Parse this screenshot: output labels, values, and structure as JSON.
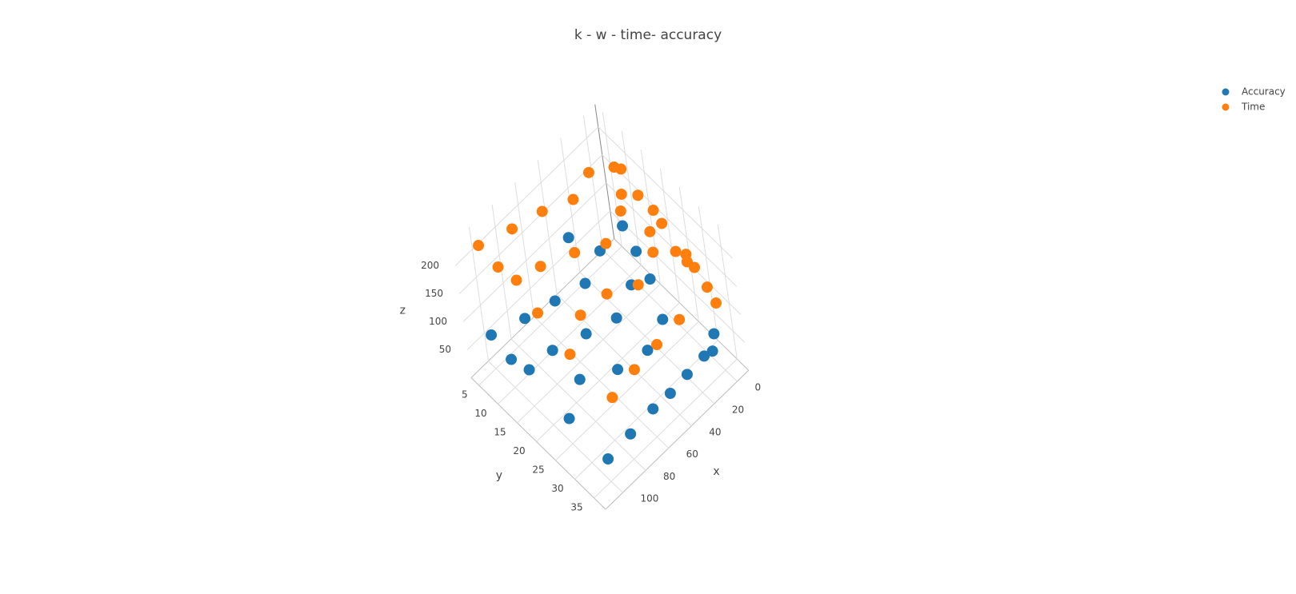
{
  "chart_data": {
    "type": "scatter3d",
    "title": "k - w - time- accuracy",
    "x_label": "x",
    "y_label": "y",
    "z_label": "z",
    "xlim": [
      -10,
      115
    ],
    "ylim": [
      3,
      38
    ],
    "zlim": [
      0,
      240
    ],
    "xticks": [
      0,
      20,
      40,
      60,
      80,
      100
    ],
    "yticks": [
      5,
      10,
      15,
      20,
      25,
      30,
      35
    ],
    "zticks": [
      50,
      100,
      150,
      200
    ],
    "grid": true,
    "legend_position": "top-right",
    "series": [
      {
        "name": "Accuracy",
        "color": "#1f77b4",
        "x": [
          100,
          80,
          60,
          45,
          30,
          15,
          8,
          5,
          100,
          100,
          100,
          100,
          80,
          80,
          80,
          60,
          60,
          60,
          40,
          40,
          40,
          20,
          20,
          20,
          10,
          5,
          0,
          30
        ],
        "y": [
          35,
          35,
          35,
          35,
          35,
          35,
          35,
          35,
          5,
          10,
          15,
          25,
          8,
          15,
          22,
          10,
          18,
          26,
          12,
          20,
          28,
          10,
          18,
          26,
          20,
          15,
          10,
          5
        ],
        "z": [
          40,
          45,
          50,
          48,
          52,
          55,
          50,
          75,
          60,
          50,
          65,
          45,
          70,
          60,
          55,
          75,
          70,
          60,
          80,
          72,
          68,
          85,
          78,
          70,
          82,
          88,
          90,
          95
        ]
      },
      {
        "name": "Time",
        "color": "#ff7f0e",
        "x": [
          100,
          100,
          100,
          100,
          100,
          80,
          80,
          80,
          60,
          60,
          60,
          40,
          40,
          40,
          20,
          20,
          20,
          10,
          10,
          0,
          0,
          5,
          30,
          50,
          70,
          90,
          0,
          0,
          0,
          0,
          0,
          0,
          0,
          0
        ],
        "y": [
          5,
          10,
          15,
          20,
          28,
          8,
          15,
          25,
          10,
          18,
          26,
          12,
          20,
          28,
          10,
          18,
          26,
          15,
          22,
          10,
          20,
          30,
          35,
          35,
          35,
          35,
          35,
          33,
          30,
          25,
          28,
          22,
          16,
          12
        ],
        "z": [
          220,
          215,
          225,
          200,
          180,
          230,
          210,
          190,
          235,
          215,
          195,
          230,
          205,
          185,
          225,
          210,
          190,
          200,
          180,
          195,
          185,
          170,
          150,
          145,
          140,
          130,
          120,
          135,
          150,
          145,
          160,
          175,
          185,
          205
        ]
      }
    ]
  }
}
